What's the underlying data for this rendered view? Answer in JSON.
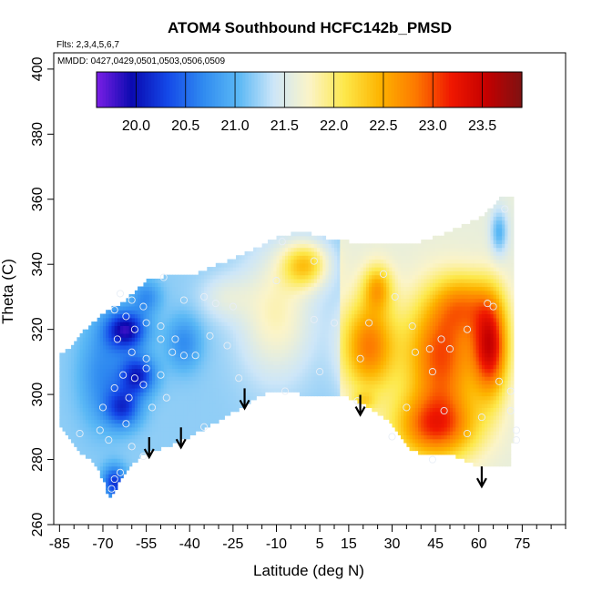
{
  "chart_data": {
    "type": "heatmap",
    "title": "ATOM4 Southbound HCFC142b_PMSD",
    "subtitle_flights": "Flts: 2,3,4,5,6,7",
    "subtitle_dates": "MMDD: 0427,0429,0501,0503,0506,0509",
    "xlabel": "Latitude (deg N)",
    "ylabel": "Theta (C)",
    "xlim": [
      -87,
      90
    ],
    "ylim": [
      260,
      405
    ],
    "x_major_ticks": [
      -85,
      -70,
      -55,
      -40,
      -25,
      -10,
      5,
      15,
      30,
      45,
      60,
      75
    ],
    "x_minor_ticks": [
      -80,
      -75,
      -65,
      -60,
      -50,
      -45,
      -35,
      -30,
      -20,
      -15,
      -5,
      0,
      10,
      20,
      25,
      35,
      40,
      50,
      55,
      65,
      70,
      80,
      85,
      90
    ],
    "x_tick_labels": [
      "-85",
      "-70",
      "-55",
      "-40",
      "-25",
      "-10",
      "5",
      "15",
      "30",
      "45",
      "60",
      "75"
    ],
    "y_ticks": [
      260,
      280,
      300,
      320,
      340,
      360,
      380,
      400
    ],
    "y_tick_labels": [
      "260",
      "280",
      "300",
      "320",
      "340",
      "360",
      "380",
      "400"
    ],
    "colorbar": {
      "range": [
        19.6,
        23.9
      ],
      "ticks": [
        20.0,
        20.5,
        21.0,
        21.5,
        22.0,
        22.5,
        23.0,
        23.5
      ],
      "tick_labels": [
        "20.0",
        "20.5",
        "21.0",
        "21.5",
        "22.0",
        "22.5",
        "23.0",
        "23.5"
      ],
      "colors": [
        "#7b1fe6",
        "#0a0ab0",
        "#1448e8",
        "#2f8af0",
        "#5ab8f5",
        "#cde6f8",
        "#fbf4c8",
        "#fde84a",
        "#fdb400",
        "#fd7a00",
        "#f01800",
        "#c40000",
        "#7e1212"
      ]
    },
    "tropopause_arrows": [
      {
        "lat": -54,
        "theta": 281
      },
      {
        "lat": -43,
        "theta": 284
      },
      {
        "lat": -21,
        "theta": 296
      },
      {
        "lat": 19,
        "theta": 294
      },
      {
        "lat": 61,
        "theta": 272
      }
    ],
    "observations": [
      {
        "lat": -64,
        "theta": 331
      },
      {
        "lat": -60,
        "theta": 329
      },
      {
        "lat": -56,
        "theta": 327
      },
      {
        "lat": -66,
        "theta": 326
      },
      {
        "lat": -62,
        "theta": 324
      },
      {
        "lat": -59,
        "theta": 320
      },
      {
        "lat": -55,
        "theta": 322
      },
      {
        "lat": -50,
        "theta": 321
      },
      {
        "lat": -65,
        "theta": 317
      },
      {
        "lat": -60,
        "theta": 313
      },
      {
        "lat": -55,
        "theta": 311
      },
      {
        "lat": -50,
        "theta": 317
      },
      {
        "lat": -46,
        "theta": 313
      },
      {
        "lat": -42,
        "theta": 312
      },
      {
        "lat": -38,
        "theta": 312
      },
      {
        "lat": -63,
        "theta": 306
      },
      {
        "lat": -59,
        "theta": 305
      },
      {
        "lat": -55,
        "theta": 308
      },
      {
        "lat": -50,
        "theta": 306
      },
      {
        "lat": -66,
        "theta": 302
      },
      {
        "lat": -61,
        "theta": 299
      },
      {
        "lat": -56,
        "theta": 303
      },
      {
        "lat": -53,
        "theta": 296
      },
      {
        "lat": -48,
        "theta": 299
      },
      {
        "lat": -70,
        "theta": 296
      },
      {
        "lat": -62,
        "theta": 291
      },
      {
        "lat": -78,
        "theta": 288
      },
      {
        "lat": -71,
        "theta": 289
      },
      {
        "lat": -68,
        "theta": 286
      },
      {
        "lat": -60,
        "theta": 284
      },
      {
        "lat": -56,
        "theta": 281
      },
      {
        "lat": -64,
        "theta": 276
      },
      {
        "lat": -66,
        "theta": 274
      },
      {
        "lat": -67,
        "theta": 271
      },
      {
        "lat": -49,
        "theta": 336
      },
      {
        "lat": -42,
        "theta": 329
      },
      {
        "lat": -35,
        "theta": 330
      },
      {
        "lat": -31,
        "theta": 328
      },
      {
        "lat": -33,
        "theta": 318
      },
      {
        "lat": -27,
        "theta": 315
      },
      {
        "lat": -23,
        "theta": 305
      },
      {
        "lat": -35,
        "theta": 290
      },
      {
        "lat": -45,
        "theta": 317
      },
      {
        "lat": -25,
        "theta": 327
      },
      {
        "lat": -10,
        "theta": 335
      },
      {
        "lat": -8,
        "theta": 347
      },
      {
        "lat": 3,
        "theta": 341
      },
      {
        "lat": 3,
        "theta": 323
      },
      {
        "lat": 10,
        "theta": 322
      },
      {
        "lat": 5,
        "theta": 307
      },
      {
        "lat": -7,
        "theta": 301
      },
      {
        "lat": 19,
        "theta": 311
      },
      {
        "lat": 22,
        "theta": 322
      },
      {
        "lat": 27,
        "theta": 337
      },
      {
        "lat": 31,
        "theta": 330
      },
      {
        "lat": 37,
        "theta": 321
      },
      {
        "lat": 43,
        "theta": 314
      },
      {
        "lat": 44,
        "theta": 307
      },
      {
        "lat": 38,
        "theta": 313
      },
      {
        "lat": 47,
        "theta": 317
      },
      {
        "lat": 50,
        "theta": 314
      },
      {
        "lat": 56,
        "theta": 320
      },
      {
        "lat": 63,
        "theta": 328
      },
      {
        "lat": 65,
        "theta": 327
      },
      {
        "lat": 71,
        "theta": 301
      },
      {
        "lat": 73,
        "theta": 289
      },
      {
        "lat": 73,
        "theta": 286
      },
      {
        "lat": 67,
        "theta": 304
      },
      {
        "lat": 61,
        "theta": 293
      },
      {
        "lat": 56,
        "theta": 288
      },
      {
        "lat": 48,
        "theta": 295
      },
      {
        "lat": 44,
        "theta": 280
      },
      {
        "lat": 35,
        "theta": 296
      },
      {
        "lat": 30,
        "theta": 287
      },
      {
        "lat": 18,
        "theta": 298
      },
      {
        "lat": 69,
        "theta": 357
      },
      {
        "lat": 71,
        "theta": 295
      }
    ]
  }
}
